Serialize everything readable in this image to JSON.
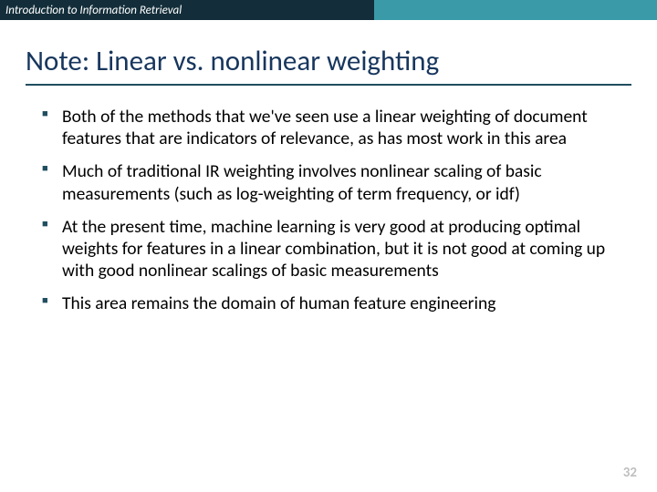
{
  "header": {
    "course_title": "Introduction to Information Retrieval",
    "bar_left_color": "#132e3a",
    "bar_right_color": "#3a9aa8",
    "title_color": "#ffffff",
    "title_fontsize": 13
  },
  "slide": {
    "title": "Note: Linear vs. nonlinear weighting",
    "title_color": "#17365d",
    "title_fontsize": 31,
    "underline_color": "#1f4e5f",
    "bullets": [
      "Both of the methods that we've seen use a linear weighting of document features that are indicators of relevance, as has most work in this area",
      "Much of traditional IR weighting involves nonlinear scaling of basic measurements (such as log-weighting of term frequency, or idf)",
      "At the present time, machine learning is very good at producing optimal weights for features in a linear combination, but it is not good at coming up with good nonlinear scalings of basic measurements",
      "This area remains the domain of human feature engineering"
    ],
    "bullet_marker_color": "#1f4e5f",
    "bullet_fontsize": 19.5,
    "page_number": "32",
    "page_number_color": "#bfbfbf",
    "background_color": "#ffffff"
  }
}
